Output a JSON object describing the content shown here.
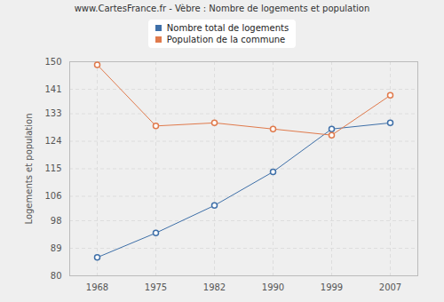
{
  "chart_data": {
    "type": "line",
    "title": "www.CartesFrance.fr - Vèbre : Nombre de logements et population",
    "y_label": "Logements et population",
    "categories": [
      "1968",
      "1975",
      "1982",
      "1990",
      "1999",
      "2007"
    ],
    "series": [
      {
        "name": "Nombre total de logements",
        "color": "#3e6fa8",
        "values": [
          86,
          94,
          103,
          114,
          128,
          130
        ]
      },
      {
        "name": "Population de la commune",
        "color": "#e07a4c",
        "values": [
          149,
          129,
          130,
          128,
          126,
          139
        ]
      }
    ],
    "ylim": [
      80,
      150
    ],
    "yticks": [
      80,
      89,
      98,
      106,
      115,
      124,
      133,
      141,
      150
    ],
    "grid": true,
    "legend": "top",
    "marker": "circle"
  }
}
